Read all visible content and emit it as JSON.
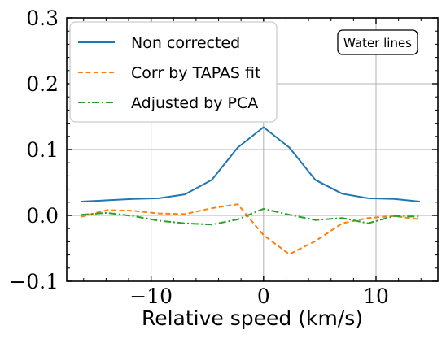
{
  "chart_data": {
    "type": "line",
    "xlabel": "Relative speed (km/s)",
    "ylabel": "",
    "xlim": [
      -17.5,
      15.5
    ],
    "ylim": [
      -0.1,
      0.3
    ],
    "xticks": [
      -10,
      0,
      10
    ],
    "xtick_labels": [
      "−10",
      "0",
      "10"
    ],
    "yticks": [
      -0.1,
      0.0,
      0.1,
      0.2,
      0.3
    ],
    "ytick_labels": [
      "−0.1",
      "0.0",
      "0.1",
      "0.2",
      "0.3"
    ],
    "grid": true,
    "legend_position": "top-left",
    "annotation": "Water lines",
    "x": [
      -16.2,
      -13.9,
      -11.6,
      -9.3,
      -7.0,
      -4.6,
      -2.3,
      0.0,
      2.3,
      4.6,
      7.0,
      9.3,
      11.6,
      13.9
    ],
    "series": [
      {
        "name": "Non corrected",
        "color": "#1f77b4",
        "dash": "solid",
        "values": [
          0.021,
          0.023,
          0.025,
          0.026,
          0.032,
          0.054,
          0.103,
          0.134,
          0.103,
          0.054,
          0.033,
          0.026,
          0.025,
          0.021
        ]
      },
      {
        "name": "Corr by TAPAS fit",
        "color": "#ff7f0e",
        "dash": "dashed",
        "values": [
          -0.002,
          0.008,
          0.007,
          0.003,
          0.002,
          0.011,
          0.017,
          -0.03,
          -0.059,
          -0.039,
          -0.012,
          -0.004,
          -0.001,
          -0.006
        ]
      },
      {
        "name": "Adjusted by PCA",
        "color": "#2ca02c",
        "dash": "dashdot",
        "values": [
          0.001,
          0.004,
          -0.001,
          -0.008,
          -0.012,
          -0.014,
          -0.006,
          0.01,
          0.001,
          -0.007,
          -0.004,
          -0.012,
          -0.001,
          -0.002
        ]
      }
    ]
  }
}
